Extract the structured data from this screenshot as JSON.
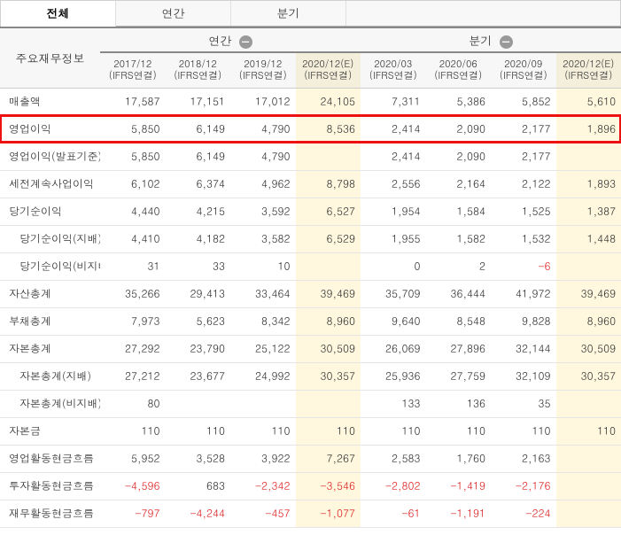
{
  "tabs": {
    "all": "전체",
    "annual": "연간",
    "quarter": "분기",
    "active": "all"
  },
  "rowhead_label": "주요재무정보",
  "groups": {
    "annual": "연간",
    "quarter": "분기"
  },
  "sub_label": "(IFRS연결)",
  "columns": [
    {
      "period": "2017/12",
      "estimate": false
    },
    {
      "period": "2018/12",
      "estimate": false
    },
    {
      "period": "2019/12",
      "estimate": false
    },
    {
      "period": "2020/12(E)",
      "estimate": true
    },
    {
      "period": "2020/03",
      "estimate": false
    },
    {
      "period": "2020/06",
      "estimate": false
    },
    {
      "period": "2020/09",
      "estimate": false
    },
    {
      "period": "2020/12(E)",
      "estimate": true
    }
  ],
  "rows": [
    {
      "label": "매출액",
      "indent": false,
      "highlight": false,
      "values": [
        17587,
        17151,
        17012,
        24105,
        7311,
        5386,
        5852,
        5610
      ]
    },
    {
      "label": "영업이익",
      "indent": false,
      "highlight": true,
      "values": [
        5850,
        6149,
        4790,
        8536,
        2414,
        2090,
        2177,
        1896
      ]
    },
    {
      "label": "영업이익(발표기준)",
      "indent": false,
      "highlight": false,
      "values": [
        5850,
        6149,
        4790,
        null,
        2414,
        2090,
        2177,
        null
      ]
    },
    {
      "label": "세전계속사업이익",
      "indent": false,
      "highlight": false,
      "values": [
        6102,
        6374,
        4962,
        8798,
        2556,
        2164,
        2122,
        1893
      ]
    },
    {
      "label": "당기순이익",
      "indent": false,
      "highlight": false,
      "values": [
        4440,
        4215,
        3592,
        6527,
        1954,
        1584,
        1525,
        1387
      ]
    },
    {
      "label": "당기순이익(지배)",
      "indent": true,
      "highlight": false,
      "values": [
        4410,
        4182,
        3582,
        6529,
        1955,
        1582,
        1532,
        1448
      ]
    },
    {
      "label": "당기순이익(비지배)",
      "indent": true,
      "highlight": false,
      "values": [
        31,
        33,
        10,
        null,
        0,
        2,
        -6,
        null
      ]
    },
    {
      "label": "자산총계",
      "indent": false,
      "highlight": false,
      "values": [
        35266,
        29413,
        33464,
        39469,
        35709,
        36444,
        41972,
        39469
      ]
    },
    {
      "label": "부채총계",
      "indent": false,
      "highlight": false,
      "values": [
        7973,
        5623,
        8342,
        8960,
        9640,
        8548,
        9828,
        8960
      ]
    },
    {
      "label": "자본총계",
      "indent": false,
      "highlight": false,
      "values": [
        27292,
        23790,
        25122,
        30509,
        26069,
        27896,
        32144,
        30509
      ]
    },
    {
      "label": "자본총계(지배)",
      "indent": true,
      "highlight": false,
      "values": [
        27212,
        23677,
        24992,
        30357,
        25936,
        27759,
        32109,
        30357
      ]
    },
    {
      "label": "자본총계(비지배)",
      "indent": true,
      "highlight": false,
      "values": [
        80,
        null,
        null,
        null,
        133,
        136,
        35,
        null
      ]
    },
    {
      "label": "자본금",
      "indent": false,
      "highlight": false,
      "values": [
        110,
        110,
        110,
        110,
        110,
        110,
        110,
        110
      ]
    },
    {
      "label": "영업활동현금흐름",
      "indent": false,
      "highlight": false,
      "values": [
        5952,
        3528,
        3922,
        7267,
        2583,
        1760,
        2163,
        null
      ]
    },
    {
      "label": "투자활동현금흐름",
      "indent": false,
      "highlight": false,
      "values": [
        -4596,
        683,
        -2342,
        -3546,
        -2802,
        -1419,
        -2176,
        null
      ]
    },
    {
      "label": "재무활동현금흐름",
      "indent": false,
      "highlight": false,
      "values": [
        -797,
        -4244,
        -457,
        -1077,
        -61,
        -1191,
        -224,
        null
      ]
    }
  ]
}
